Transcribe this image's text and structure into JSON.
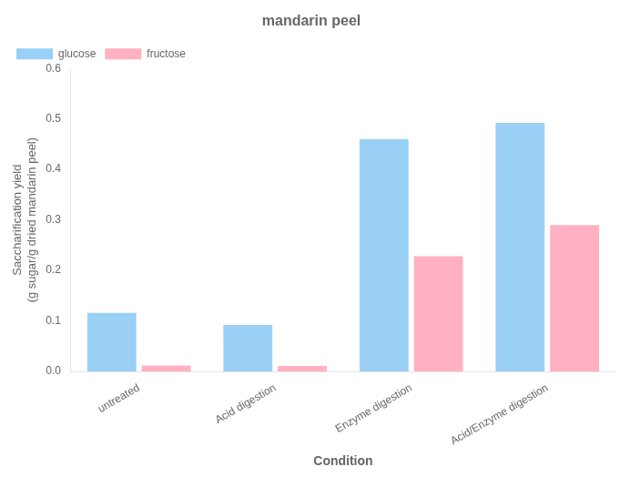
{
  "chart_data": {
    "type": "bar",
    "title": "mandarin peel",
    "xlabel": "Condition",
    "ylabel": "Saccharification yield\n(g sugar/g dried mandarin peel)",
    "categories": [
      "untreated",
      "Acid digestion",
      "Enzyme digestion",
      "Acid/Enzyme digestion"
    ],
    "series": [
      {
        "name": "glucose",
        "values": [
          0.116,
          0.092,
          0.46,
          0.492
        ]
      },
      {
        "name": "fructose",
        "values": [
          0.012,
          0.011,
          0.228,
          0.29
        ]
      }
    ],
    "ylim": [
      0,
      0.6
    ],
    "yticks": [
      {
        "value": 0,
        "label": "0.0"
      },
      0.1,
      0.2,
      0.3,
      0.4,
      0.5,
      0.6
    ],
    "grid": false,
    "legend": "upper left"
  }
}
